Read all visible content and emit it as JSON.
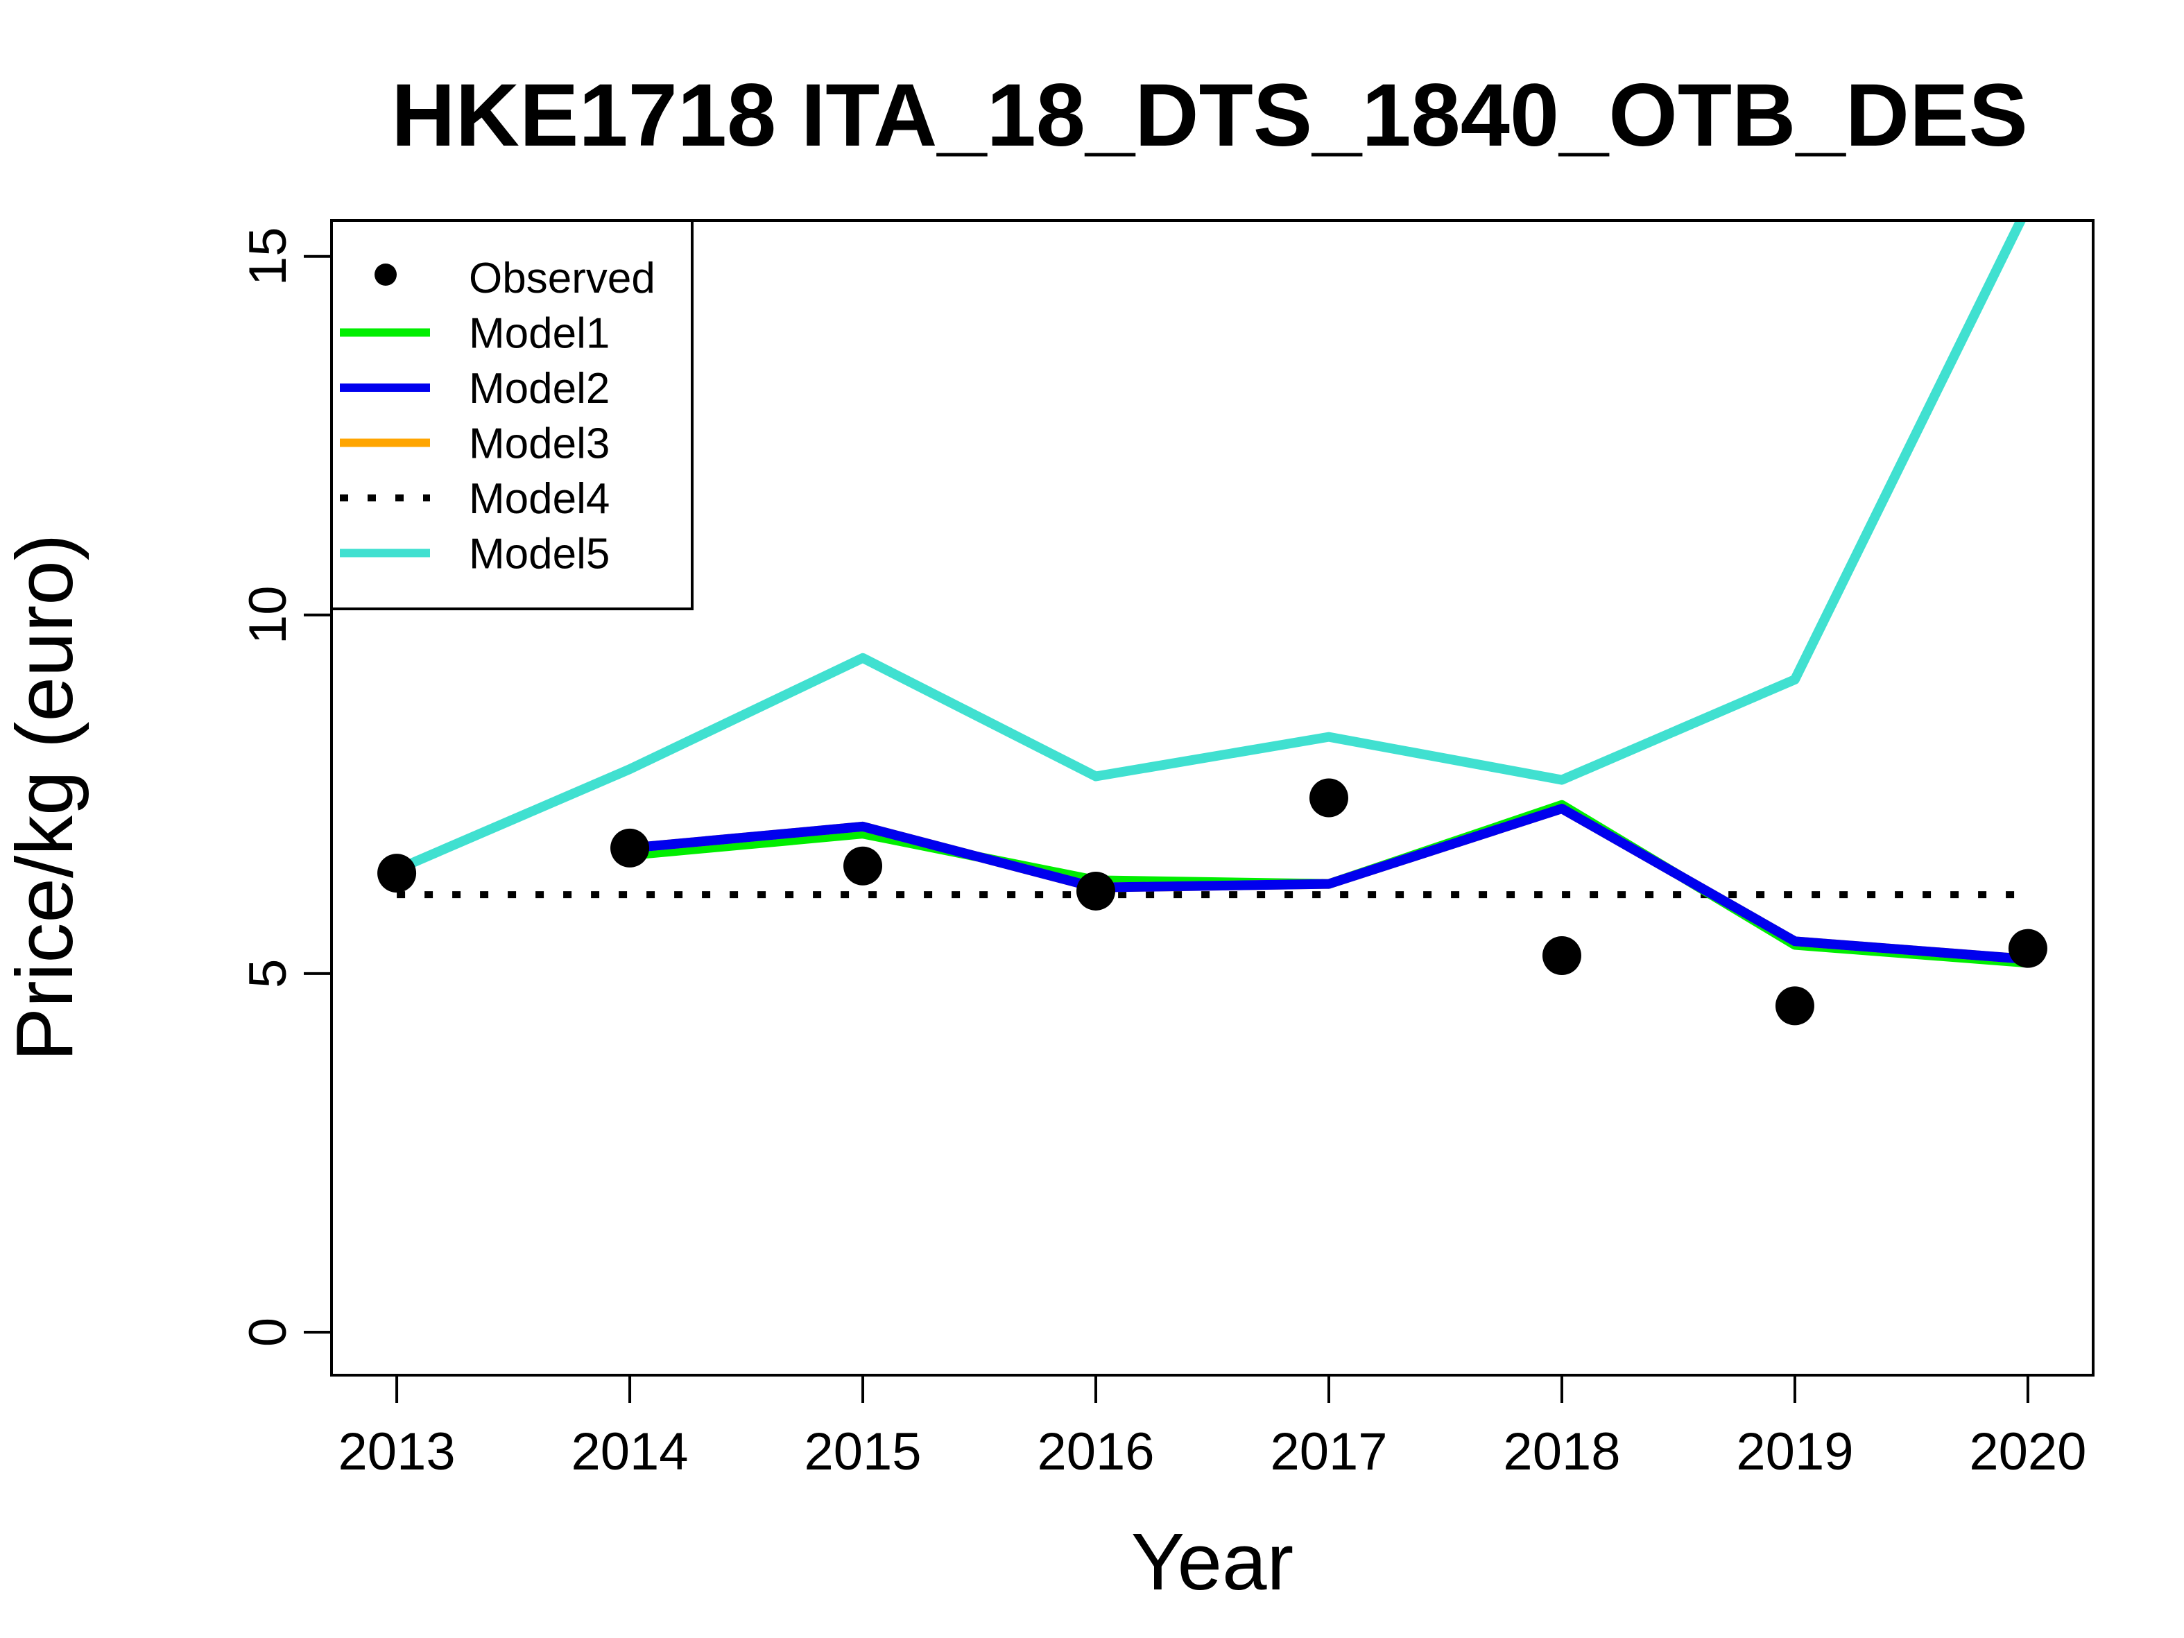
{
  "chart_data": {
    "type": "line",
    "title": "HKE1718 ITA_18_DTS_1840_OTB_DES",
    "xlabel": "Year",
    "ylabel": "Price/kg (euro)",
    "x": [
      "2013",
      "2014",
      "2015",
      "2016",
      "2017",
      "2018",
      "2019",
      "2020"
    ],
    "xlim": [
      2012.72,
      2020.28
    ],
    "ylim": [
      -0.6,
      15.5
    ],
    "yticks": [
      0,
      5,
      10,
      15
    ],
    "grid": false,
    "legend_position": "top-left",
    "series": [
      {
        "name": "Observed",
        "kind": "points",
        "color": "#000000",
        "values": [
          6.4,
          6.75,
          6.5,
          6.15,
          7.45,
          5.25,
          4.55,
          5.35
        ]
      },
      {
        "name": "Model1",
        "kind": "line",
        "color": "#00ee00",
        "dash": "solid",
        "values": [
          null,
          6.65,
          6.95,
          6.3,
          6.25,
          7.35,
          5.4,
          5.15
        ]
      },
      {
        "name": "Model2",
        "kind": "line",
        "color": "#0000ee",
        "dash": "solid",
        "values": [
          null,
          6.75,
          7.05,
          6.2,
          6.25,
          7.3,
          5.45,
          5.2
        ]
      },
      {
        "name": "Model3",
        "kind": "line",
        "color": "#ffa500",
        "dash": "solid",
        "values": [
          null,
          6.75,
          7.05,
          6.2,
          6.25,
          7.3,
          5.45,
          5.2
        ]
      },
      {
        "name": "Model4",
        "kind": "line",
        "color": "#000000",
        "dash": "dotted",
        "values": [
          6.1,
          6.1,
          6.1,
          6.1,
          6.1,
          6.1,
          6.1,
          6.1
        ]
      },
      {
        "name": "Model5",
        "kind": "line",
        "color": "#40e0d0",
        "dash": "solid",
        "values": [
          6.45,
          7.85,
          9.4,
          7.75,
          8.3,
          7.7,
          9.1,
          15.7
        ]
      }
    ]
  }
}
